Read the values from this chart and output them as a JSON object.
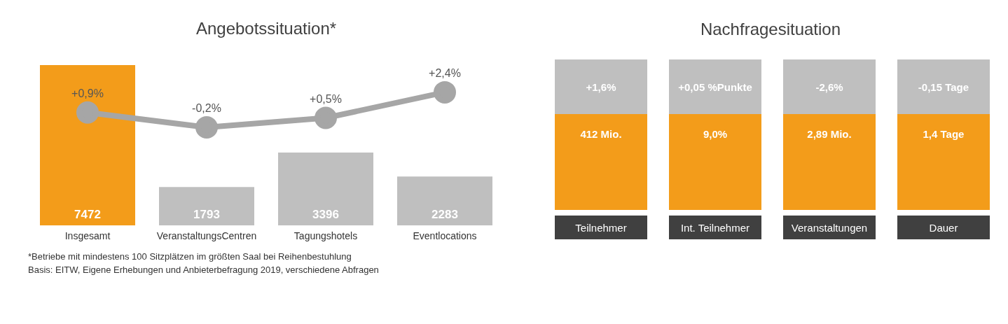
{
  "chart_data": [
    {
      "type": "bar",
      "title": "Angebotssituation*",
      "categories": [
        "Insgesamt",
        "VeranstaltungsCentren",
        "Tagungshotels",
        "Eventlocations"
      ],
      "series": [
        {
          "type": "bar",
          "colors": [
            "#f39c1a",
            "#bfbfbf",
            "#bfbfbf",
            "#bfbfbf"
          ],
          "values": [
            7472,
            1793,
            3396,
            2283
          ],
          "value_labels": [
            "7472",
            "1793",
            "3396",
            "2283"
          ]
        },
        {
          "type": "line",
          "axis": "y2",
          "color": "#a6a6a6",
          "values": [
            0.9,
            -0.2,
            0.5,
            2.4
          ],
          "value_labels": [
            "+0,9%",
            "-0,2%",
            "+0,5%",
            "+2,4%"
          ]
        }
      ],
      "marker": "circle",
      "grid": false,
      "legend": false,
      "tick_labels": "x",
      "annotations": [
        "*Betriebe mit mindestens 100 Sitzplätzen im größten Saal bei Reihenbestuhlung",
        "Basis: EITW, Eigene Erhebungen und Anbieterbefragung 2019, verschiedene Abfragen"
      ]
    },
    {
      "type": "other",
      "title": "Nachfragesituation",
      "categories": [
        "Teilnehmer",
        "Int. Teilnehmer",
        "Veranstaltungen",
        "Dauer"
      ],
      "annotations": [
        "+1,6%",
        "+0,05 %Punkte",
        "-2,6%",
        "-0,15 Tage",
        "412 Mio.",
        "9,0%",
        "2,89 Mio.",
        "1,4 Tage"
      ]
    }
  ]
}
